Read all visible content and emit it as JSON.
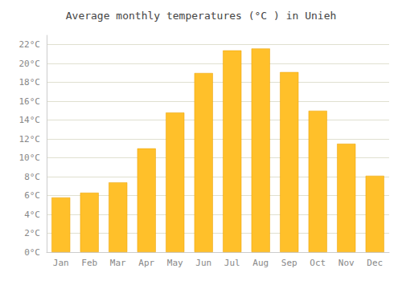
{
  "chart_data": {
    "type": "bar",
    "title": "Average monthly temperatures (°C ) in Unieh",
    "categories": [
      "Jan",
      "Feb",
      "Mar",
      "Apr",
      "May",
      "Jun",
      "Jul",
      "Aug",
      "Sep",
      "Oct",
      "Nov",
      "Dec"
    ],
    "values": [
      5.8,
      6.3,
      7.4,
      11.0,
      14.8,
      19.0,
      21.4,
      21.6,
      19.1,
      15.0,
      11.5,
      8.1
    ],
    "color": "#FFC02A",
    "ylim": [
      0,
      23
    ],
    "yticks": [
      {
        "value": 0,
        "label": "0°C"
      },
      {
        "value": 2,
        "label": "2°C"
      },
      {
        "value": 4,
        "label": "4°C"
      },
      {
        "value": 6,
        "label": "6°C"
      },
      {
        "value": 8,
        "label": "8°C"
      },
      {
        "value": 10,
        "label": "10°C"
      },
      {
        "value": 12,
        "label": "12°C"
      },
      {
        "value": 14,
        "label": "14°C"
      },
      {
        "value": 16,
        "label": "16°C"
      },
      {
        "value": 18,
        "label": "18°C"
      },
      {
        "value": 20,
        "label": "20°C"
      },
      {
        "value": 22,
        "label": "22°C"
      }
    ],
    "grid": true
  }
}
